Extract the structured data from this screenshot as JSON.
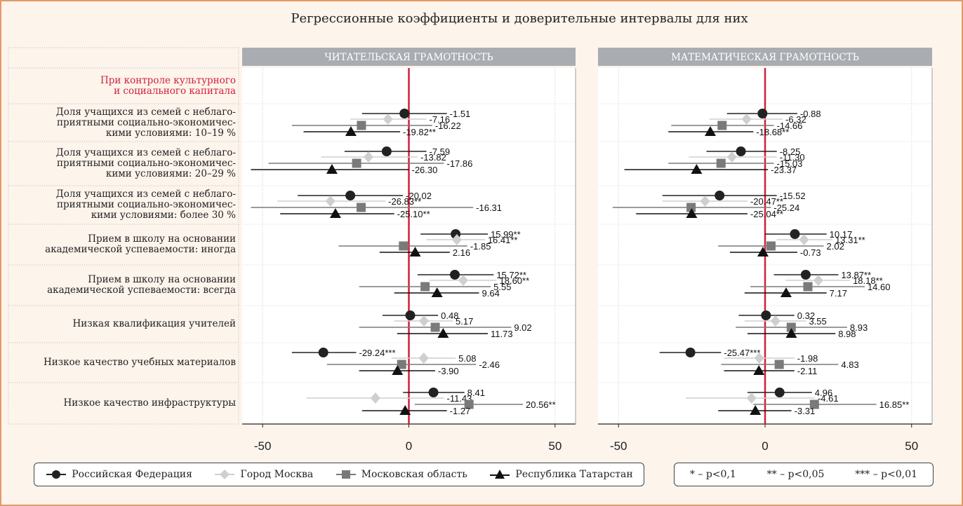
{
  "chart_data": {
    "type": "scatter",
    "title": "Регрессионные коэффициенты и доверительные интервалы для них",
    "xlim": [
      -57,
      57
    ],
    "xticks": [
      -50,
      0,
      50
    ],
    "panels": [
      "ЧИТАТЕЛЬСКАЯ ГРАМОТНОСТЬ",
      "МАТЕМАТИЧЕСКАЯ ГРАМОТНОСТЬ"
    ],
    "section_label": "При контроле культурного и социального капитала",
    "rows": [
      {
        "label": "Доля учащихся из семей с неблаго-приятными социально-экономичес-кими условиями: 10–19 %",
        "lines": [
          "Доля учащихся из семей с неблаго-",
          "приятными социально-экономичес-",
          "кими условиями: 10–19 %"
        ]
      },
      {
        "label": "Доля учащихся из семей с неблаго-приятными социально-экономичес-кими условиями: 20–29 %",
        "lines": [
          "Доля учащихся из семей с неблаго-",
          "приятными социально-экономичес-",
          "кими условиями: 20–29 %"
        ]
      },
      {
        "label": "Доля учащихся из семей с неблаго-приятными социально-экономичес-кими условиями: более 30 %",
        "lines": [
          "Доля учащихся из семей с неблаго-",
          "приятными социально-экономичес-",
          "кими условиями: более 30 %"
        ]
      },
      {
        "label": "Прием в школу на основании академической успеваемости: иногда",
        "lines": [
          "Прием в школу на основании",
          "академической успеваемости: иногда"
        ]
      },
      {
        "label": "Прием в школу на основании академической успеваемости: всегда",
        "lines": [
          "Прием в школу на основании",
          "академической успеваемости: всегда"
        ]
      },
      {
        "label": "Низкая квалификация учителей",
        "lines": [
          "Низкая квалификация учителей"
        ]
      },
      {
        "label": "Низкое качество учебных материалов",
        "lines": [
          "Низкое качество учебных материалов"
        ]
      },
      {
        "label": "Низкое качество инфраструктуры",
        "lines": [
          "Низкое качество инфраструктуры"
        ]
      }
    ],
    "series": [
      {
        "name": "Российская Федерация",
        "marker": "circle",
        "color": "#222222"
      },
      {
        "name": "Город Москва",
        "marker": "diamond",
        "color": "#cfcfcf"
      },
      {
        "name": "Московская область",
        "marker": "square",
        "color": "#7a7a7a"
      },
      {
        "name": "Республика Татарстан",
        "marker": "triangle",
        "color": "#111111"
      }
    ],
    "values": {
      "reading": [
        [
          [
            -1.51,
            -16,
            13,
            "-1.51"
          ],
          [
            -7.16,
            -20,
            6,
            "-7.16"
          ],
          [
            -16.22,
            -40,
            8,
            "-16.22"
          ],
          [
            -19.82,
            -36,
            -3,
            "-19.82**"
          ]
        ],
        [
          [
            -7.59,
            -22,
            6,
            "-7.59"
          ],
          [
            -13.82,
            -30,
            3,
            "-13.82"
          ],
          [
            -17.86,
            -48,
            12,
            "-17.86"
          ],
          [
            -26.3,
            -54,
            0,
            "-26.30"
          ]
        ],
        [
          [
            -20.02,
            -38,
            -2,
            "-20.02"
          ],
          [
            -26.83,
            -45,
            -8,
            "-26.83**"
          ],
          [
            -16.31,
            -54,
            22,
            "-16.31"
          ],
          [
            -25.1,
            -44,
            -5,
            "-25.10**"
          ]
        ],
        [
          [
            15.99,
            4,
            27,
            "15.99**"
          ],
          [
            16.41,
            6,
            26,
            "16.41**"
          ],
          [
            -1.85,
            -24,
            20,
            "-1.85"
          ],
          [
            2.16,
            -10,
            14,
            "2.16"
          ]
        ],
        [
          [
            15.72,
            3,
            29,
            "15.72**"
          ],
          [
            18.6,
            7,
            30,
            "18.60**"
          ],
          [
            5.55,
            -17,
            28,
            "5.55"
          ],
          [
            9.64,
            -5,
            24,
            "9.64"
          ]
        ],
        [
          [
            0.48,
            -9,
            10,
            "0.48"
          ],
          [
            5.17,
            -5,
            15,
            "5.17"
          ],
          [
            9.02,
            -17,
            35,
            "9.02"
          ],
          [
            11.73,
            -4,
            27,
            "11.73"
          ]
        ],
        [
          [
            -29.24,
            -40,
            -18,
            "-29.24***"
          ],
          [
            5.08,
            -6,
            16,
            "5.08"
          ],
          [
            -2.46,
            -28,
            23,
            "-2.46"
          ],
          [
            -3.9,
            -17,
            9,
            "-3.90"
          ]
        ],
        [
          [
            8.41,
            -2,
            19,
            "8.41"
          ],
          [
            -11.43,
            -35,
            12,
            "-11.43"
          ],
          [
            20.56,
            2,
            39,
            "20.56**"
          ],
          [
            -1.27,
            -16,
            13,
            "-1.27"
          ]
        ]
      ],
      "math": [
        [
          [
            -0.88,
            -13,
            11,
            "-0.88"
          ],
          [
            -6.32,
            -19,
            6,
            "-6.32"
          ],
          [
            -14.66,
            -32,
            3,
            "-14.66"
          ],
          [
            -18.68,
            -33,
            -4,
            "-18.68**"
          ]
        ],
        [
          [
            -8.25,
            -20,
            4,
            "-8.25"
          ],
          [
            -11.3,
            -26,
            4,
            "-11.30"
          ],
          [
            -15.03,
            -33,
            3,
            "-15.03"
          ],
          [
            -23.37,
            -48,
            1,
            "-23.37"
          ]
        ],
        [
          [
            -15.52,
            -35,
            4,
            "-15.52"
          ],
          [
            -20.47,
            -35,
            -6,
            "-20.47**"
          ],
          [
            -25.24,
            -52,
            2,
            "-25.24"
          ],
          [
            -25.04,
            -44,
            -6,
            "-25.04**"
          ]
        ],
        [
          [
            10.17,
            0,
            21,
            "10.17"
          ],
          [
            13.31,
            4,
            23,
            "13.31**"
          ],
          [
            2.02,
            -16,
            20,
            "2.02"
          ],
          [
            -0.73,
            -12,
            11,
            "-0.73"
          ]
        ],
        [
          [
            13.87,
            3,
            25,
            "13.87**"
          ],
          [
            18.18,
            7,
            29,
            "18.18**"
          ],
          [
            14.6,
            -5,
            34,
            "14.60"
          ],
          [
            7.17,
            -7,
            21,
            "7.17"
          ]
        ],
        [
          [
            0.32,
            -9,
            10,
            "0.32"
          ],
          [
            3.55,
            -7,
            14,
            "3.55"
          ],
          [
            8.93,
            -10,
            28,
            "8.93"
          ],
          [
            8.98,
            -6,
            24,
            "8.98"
          ]
        ],
        [
          [
            -25.47,
            -36,
            -15,
            "-25.47***"
          ],
          [
            -1.98,
            -14,
            10,
            "-1.98"
          ],
          [
            4.83,
            -15,
            25,
            "4.83"
          ],
          [
            -2.11,
            -14,
            10,
            "-2.11"
          ]
        ],
        [
          [
            4.96,
            -6,
            16,
            "4.96"
          ],
          [
            -4.61,
            -27,
            17,
            "-4.61"
          ],
          [
            16.85,
            -4,
            38,
            "16.85**"
          ],
          [
            -3.31,
            -16,
            9,
            "-3.31"
          ]
        ]
      ]
    },
    "significance_legend": [
      "* – p<0,1",
      "** – p<0,05",
      "*** – p<0,01"
    ],
    "colors": {
      "reference_line": "#d0203a",
      "panel_header": "#a9adb1",
      "section_text": "#d0203a",
      "border": "#e29a66"
    }
  }
}
